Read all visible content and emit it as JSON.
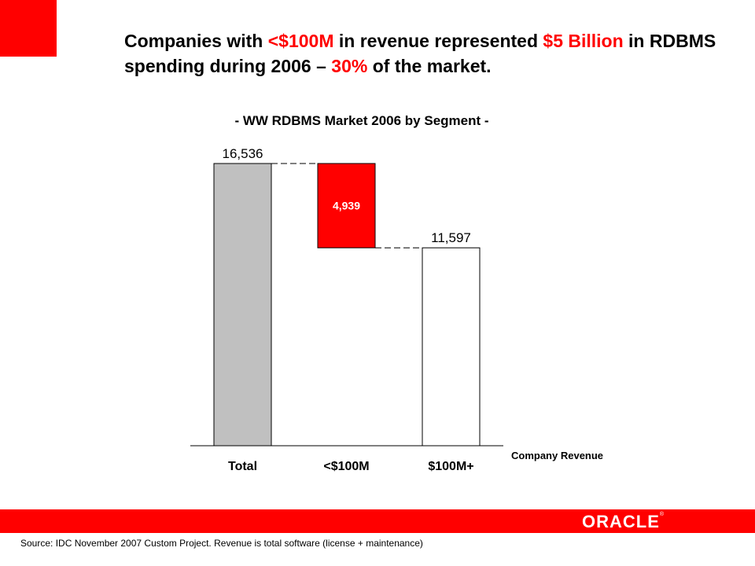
{
  "headline": {
    "part1": "Companies with ",
    "part2": "<$100M",
    "part3": " in revenue represented ",
    "part4": "$5 Billion",
    "part5": " in RDBMS spending during 2006 – ",
    "part6": "30%",
    "part7": " of the market."
  },
  "chart_data": {
    "type": "bar",
    "subtype": "waterfall",
    "title": "- WW RDBMS Market 2006 by Segment -",
    "categories": [
      "Total",
      "<$100M",
      "$100M+"
    ],
    "values": [
      16536,
      4939,
      11597
    ],
    "labels": [
      "16,536",
      "4,939",
      "11,597"
    ],
    "xlabel": "Company Revenue",
    "ylabel": "",
    "ylim": [
      0,
      16536
    ],
    "colors": [
      "#c0c0c0",
      "#ff0000",
      "#ffffff"
    ],
    "connector_style": "dashed",
    "grid": false,
    "legend": "none"
  },
  "logo": {
    "text": "ORACLE",
    "mark": "®"
  },
  "source": "Source: IDC November 2007 Custom Project. Revenue is total software (license + maintenance)",
  "colors": {
    "accent": "#ff0000",
    "total_bar": "#c0c0c0"
  }
}
